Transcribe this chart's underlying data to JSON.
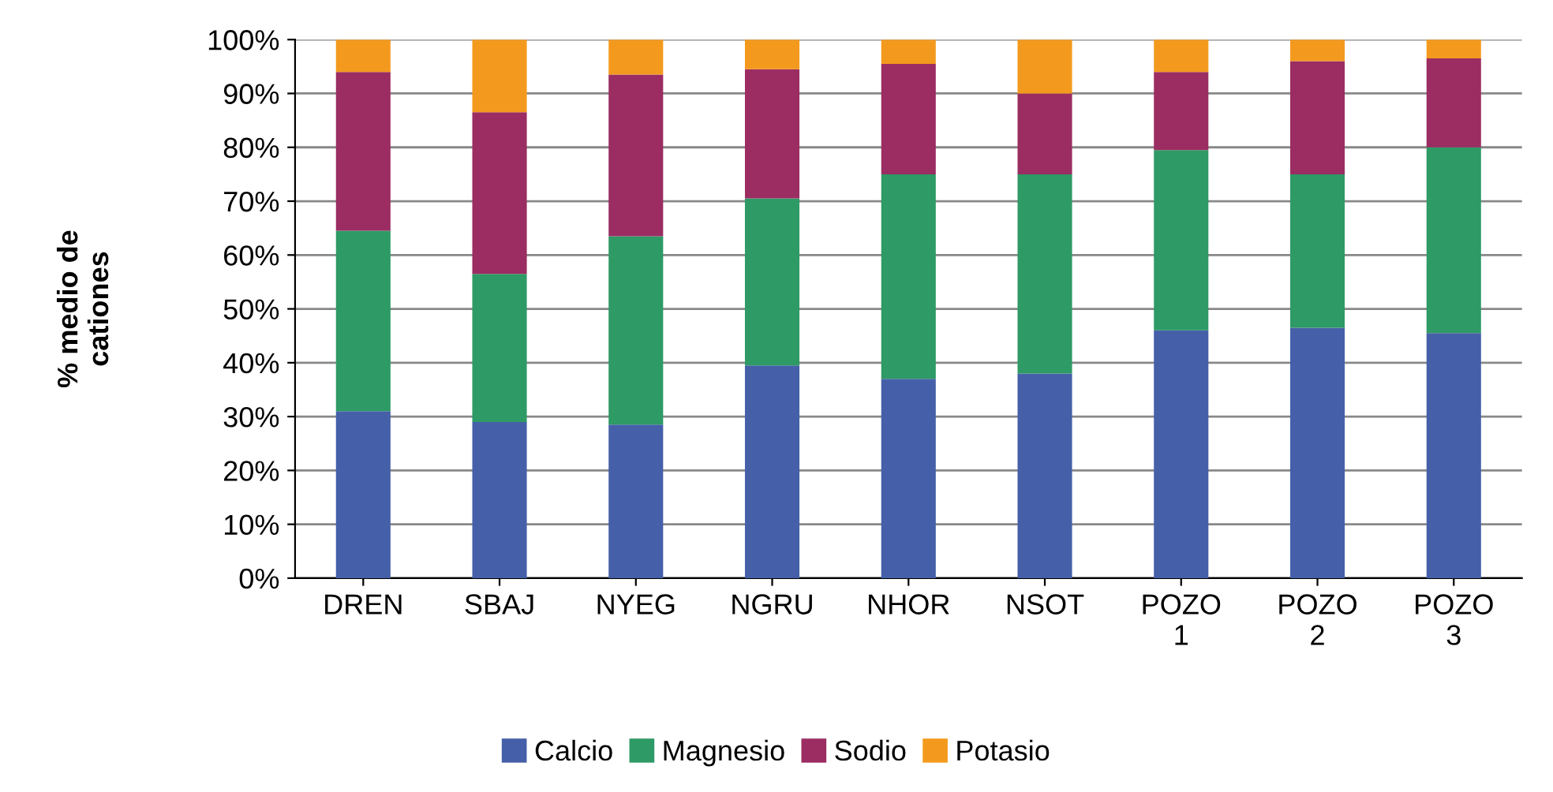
{
  "chart_data": {
    "type": "bar",
    "stacked": true,
    "ylabel": "% medio de\ncationes",
    "categories": [
      "DREN",
      "SBAJ",
      "NYEG",
      "NGRU",
      "NHOR",
      "NSOT",
      "POZO\n1",
      "POZO\n2",
      "POZO\n3"
    ],
    "series": [
      {
        "name": "Calcio",
        "color": "#4560a8",
        "values": [
          31,
          29,
          28.5,
          39.5,
          37,
          38,
          46,
          46.5,
          45.5
        ]
      },
      {
        "name": "Magnesio",
        "color": "#2e9a65",
        "values": [
          33.5,
          27.5,
          35,
          31,
          38,
          37,
          33.5,
          28.5,
          34.5
        ]
      },
      {
        "name": "Sodio",
        "color": "#9b2d62",
        "values": [
          29.5,
          30,
          30,
          24,
          20.5,
          15,
          14.5,
          21,
          16.5
        ]
      },
      {
        "name": "Potasio",
        "color": "#f39a1e",
        "values": [
          6,
          13.5,
          6.5,
          5.5,
          4.5,
          10,
          6,
          4,
          3.5
        ]
      }
    ],
    "ylim": [
      0,
      100
    ],
    "yticks": [
      {
        "value": 0,
        "label": "0%"
      },
      {
        "value": 10,
        "label": "10%"
      },
      {
        "value": 20,
        "label": "20%"
      },
      {
        "value": 30,
        "label": "30%"
      },
      {
        "value": 40,
        "label": "40%"
      },
      {
        "value": 50,
        "label": "50%"
      },
      {
        "value": 60,
        "label": "60%"
      },
      {
        "value": 70,
        "label": "70%"
      },
      {
        "value": 80,
        "label": "80%"
      },
      {
        "value": 90,
        "label": "90%"
      },
      {
        "value": 100,
        "label": "100%"
      }
    ],
    "grid": "y",
    "legend": "bottom"
  }
}
